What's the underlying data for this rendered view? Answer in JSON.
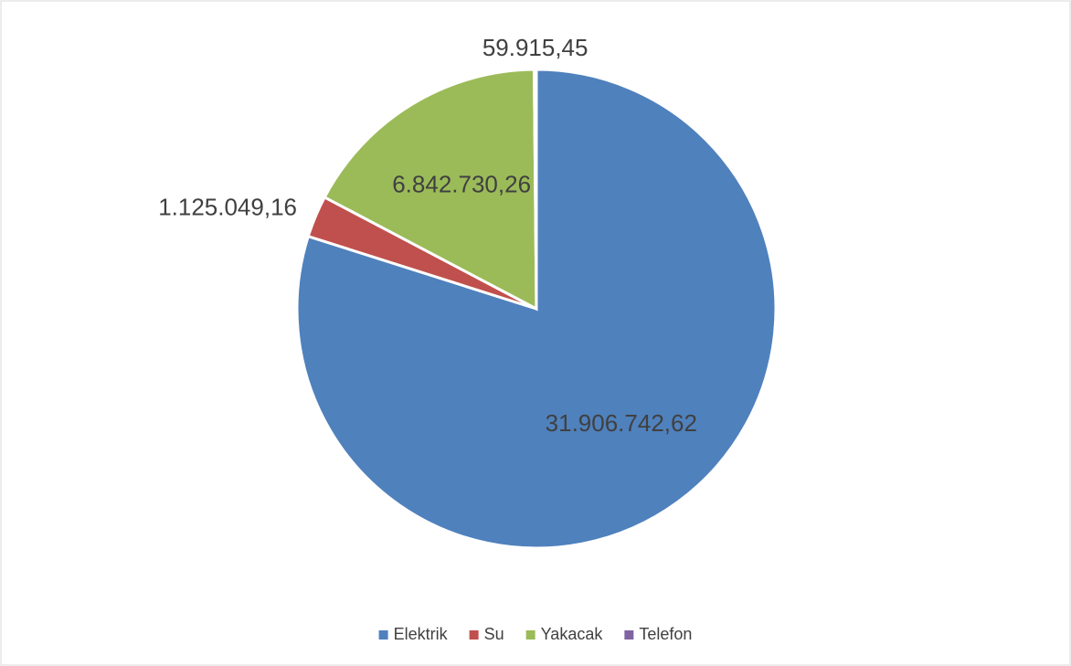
{
  "chart_data": {
    "type": "pie",
    "categories": [
      "Elektrik",
      "Su",
      "Yakacak",
      "Telefon"
    ],
    "values": [
      31906742.62,
      1125049.16,
      6842730.26,
      59915.45
    ],
    "value_labels": [
      "31.906.742,62",
      "1.125.049,16",
      "6.842.730,26",
      "59.915,45"
    ],
    "colors": [
      "#4f81bd",
      "#c0504d",
      "#9bbb59",
      "#8064a2"
    ],
    "legend": "bottom"
  }
}
